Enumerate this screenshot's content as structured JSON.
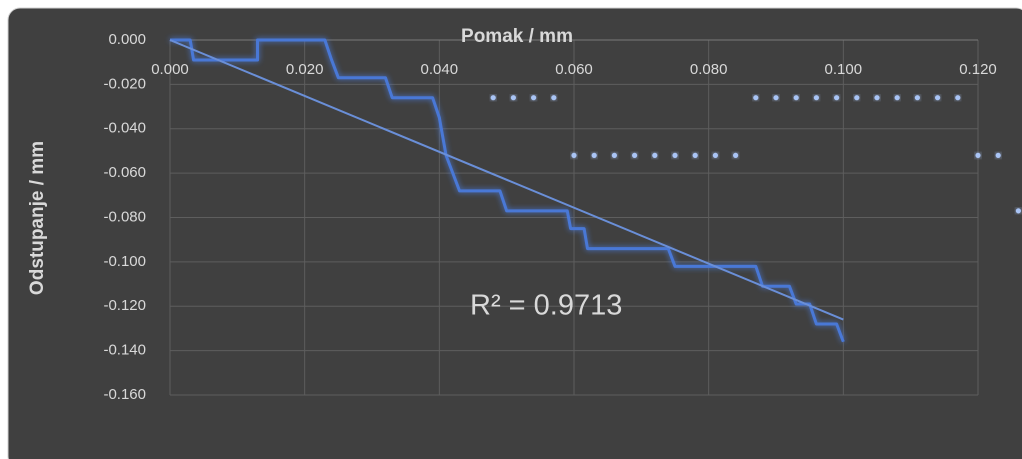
{
  "chart_data": {
    "type": "line",
    "x_label": "Pomak / mm",
    "y_label": "Odstupanje / mm",
    "annotation": "R² = 0.9713",
    "xlim": [
      0,
      0.12
    ],
    "ylim": [
      -0.16,
      0
    ],
    "xticks": [
      {
        "value": 0,
        "label": "0.000"
      },
      {
        "value": 0.02,
        "label": "0.020"
      },
      {
        "value": 0.04,
        "label": "0.040"
      },
      {
        "value": 0.06,
        "label": "0.060"
      },
      {
        "value": 0.08,
        "label": "0.080"
      },
      {
        "value": 0.1,
        "label": "0.100"
      },
      {
        "value": 0.12,
        "label": "0.120"
      }
    ],
    "yticks": [
      {
        "value": 0,
        "label": "0.000"
      },
      {
        "value": -0.02,
        "label": "-0.020"
      },
      {
        "value": -0.04,
        "label": "-0.040"
      },
      {
        "value": -0.06,
        "label": "-0.060"
      },
      {
        "value": -0.08,
        "label": "-0.080"
      },
      {
        "value": -0.1,
        "label": "-0.100"
      },
      {
        "value": -0.12,
        "label": "-0.120"
      },
      {
        "value": -0.14,
        "label": "-0.140"
      },
      {
        "value": -0.16,
        "label": "-0.160"
      }
    ],
    "grid": true,
    "series": [
      {
        "color": "#4a78d6",
        "style": "line",
        "x": [
          0,
          0.003,
          0.0035,
          0.013,
          0.013,
          0.023,
          0.024,
          0.025,
          0.032,
          0.033,
          0.039,
          0.04,
          0.041,
          0.043,
          0.049,
          0.05,
          0.059,
          0.0595,
          0.0615,
          0.062,
          0.074,
          0.075,
          0.087,
          0.088,
          0.092,
          0.093,
          0.095,
          0.096,
          0.099,
          0.1
        ],
        "values": [
          0,
          0,
          -0.009,
          -0.009,
          0,
          0,
          -0.009,
          -0.017,
          -0.017,
          -0.026,
          -0.026,
          -0.035,
          -0.052,
          -0.068,
          -0.068,
          -0.077,
          -0.077,
          -0.085,
          -0.085,
          -0.094,
          -0.094,
          -0.102,
          -0.102,
          -0.111,
          -0.111,
          -0.119,
          -0.119,
          -0.128,
          -0.128,
          -0.136
        ]
      },
      {
        "color": "#6a8fd8",
        "style": "trend",
        "x": [
          0,
          0.1
        ],
        "values": [
          0,
          -0.126
        ]
      },
      {
        "color": "#a9c4f5",
        "style": "dots",
        "x": [
          0.048,
          0.051,
          0.054,
          0.057,
          0.06,
          0.063,
          0.066,
          0.069,
          0.072,
          0.075,
          0.078,
          0.081,
          0.084,
          0.087,
          0.09,
          0.093,
          0.096,
          0.099,
          0.102,
          0.105,
          0.108,
          0.111,
          0.114,
          0.117,
          0.12,
          0.123,
          0.126
        ],
        "values": [
          -0.026,
          -0.026,
          -0.026,
          -0.026,
          -0.052,
          -0.052,
          -0.052,
          -0.052,
          -0.052,
          -0.052,
          -0.052,
          -0.052,
          -0.052,
          -0.026,
          -0.026,
          -0.026,
          -0.026,
          -0.026,
          -0.026,
          -0.026,
          -0.026,
          -0.026,
          -0.026,
          -0.026,
          -0.052,
          -0.052,
          -0.077
        ]
      }
    ]
  }
}
